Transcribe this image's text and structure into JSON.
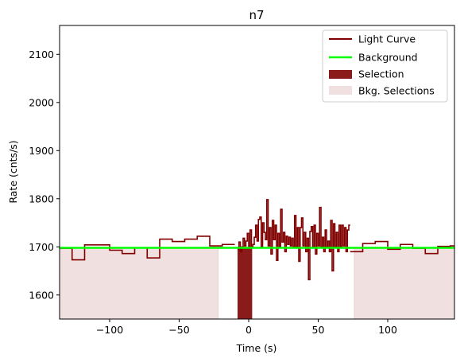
{
  "chart_data": {
    "type": "line",
    "title": "n7",
    "xlabel": "Time (s)",
    "ylabel": "Rate (cnts/s)",
    "xlim": [
      -136,
      148
    ],
    "ylim": [
      1550,
      2160
    ],
    "xticks": [
      -100,
      -50,
      0,
      50,
      100
    ],
    "xtick_labels": [
      "−100",
      "−50",
      "0",
      "50",
      "100"
    ],
    "yticks": [
      1600,
      1700,
      1800,
      1900,
      2000,
      2100
    ],
    "ytick_labels": [
      "1600",
      "1700",
      "1800",
      "1900",
      "2000",
      "2100"
    ],
    "grid": false,
    "legend_position": "top-right",
    "legend": [
      {
        "label": "Light Curve",
        "kind": "line",
        "color": "#800000"
      },
      {
        "label": "Background",
        "kind": "line",
        "color": "#00ff00"
      },
      {
        "label": "Selection",
        "kind": "patch",
        "color": "#8b1a1a"
      },
      {
        "label": "Bkg. Selections",
        "kind": "patch",
        "color": "#f0e0e0"
      }
    ],
    "background": {
      "x": [
        -136,
        148
      ],
      "y": [
        1698,
        1698
      ]
    },
    "selection": {
      "x0": -8,
      "x1": 2.5,
      "y": 1700
    },
    "bkg_selections": [
      {
        "x0": -136,
        "x1": -22
      },
      {
        "x0": 76,
        "x1": 148
      }
    ],
    "light_curve": {
      "edges": [
        -136,
        -127,
        -118,
        -109,
        -100,
        -91,
        -82,
        -73,
        -64,
        -55,
        -46,
        -37,
        -28,
        -19,
        -10
      ],
      "values": [
        1697,
        1673,
        1704,
        1704,
        1693,
        1686,
        1698,
        1677,
        1716,
        1711,
        1716,
        1722,
        1702,
        1705
      ],
      "fine": {
        "x_start": -8,
        "width": 1.0,
        "values": [
          1695,
          1710,
          1690,
          1700,
          1718,
          1702,
          1712,
          1728,
          1700,
          1735,
          1698,
          1705,
          1720,
          1745,
          1712,
          1757,
          1762,
          1700,
          1750,
          1730,
          1715,
          1798,
          1702,
          1740,
          1685,
          1755,
          1715,
          1745,
          1672,
          1728,
          1700,
          1778,
          1710,
          1730,
          1690,
          1722,
          1705,
          1720,
          1702,
          1718,
          1700,
          1765,
          1700,
          1740,
          1670,
          1740,
          1760,
          1702,
          1730,
          1690,
          1718,
          1632,
          1732,
          1742,
          1700,
          1745,
          1685,
          1728,
          1702,
          1782,
          1700,
          1720,
          1690,
          1735,
          1700,
          1712,
          1690,
          1755,
          1650,
          1748,
          1700,
          1730,
          1690,
          1745,
          1700,
          1745,
          1702,
          1740,
          1690,
          1735,
          1745
        ]
      },
      "post_edges": [
        73,
        76,
        82,
        91,
        100,
        109,
        118,
        127,
        136,
        145,
        148
      ],
      "post_values": [
        1690,
        1690,
        1707,
        1711,
        1695,
        1705,
        1697,
        1686,
        1701,
        1702
      ]
    }
  }
}
